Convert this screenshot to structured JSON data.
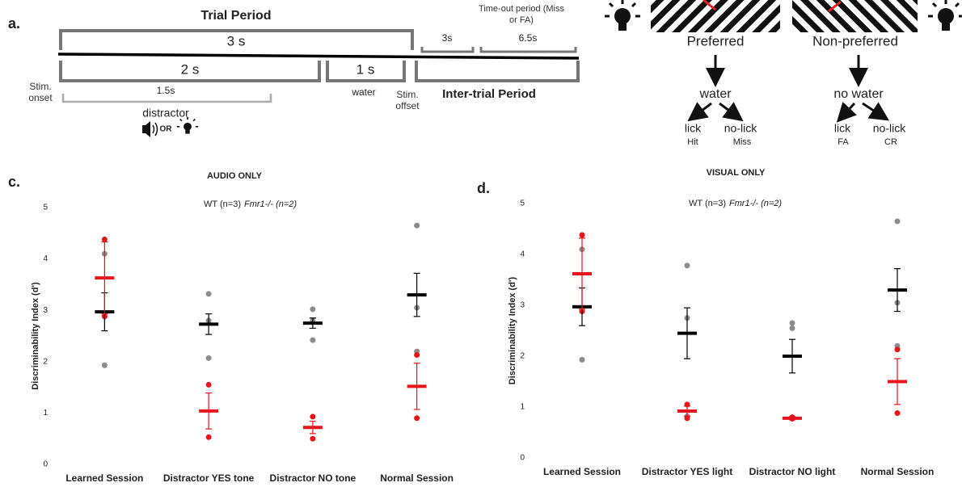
{
  "panel_a": {
    "label": "a.",
    "trial_period": "Trial Period",
    "full_trial": "3 s",
    "stim_period": "2 s",
    "water_period": "1 s",
    "stim_onset": "Stim. onset",
    "distractor_duration": "1.5s",
    "distractor": "distractor",
    "or": "OR",
    "water": "water",
    "stim_offset": "Stim. offset",
    "inter_trial": "Inter-trial Period",
    "iti": "3s",
    "timeout_label": "Time-out period (Miss or FA)",
    "timeout": "6.5s"
  },
  "task": {
    "preferred": "Preferred",
    "non_preferred": "Non-preferred",
    "water": "water",
    "no_water": "no water",
    "lick_left": "lick",
    "nolick_left": "no-lick",
    "hit": "Hit",
    "miss": "Miss",
    "lick_right": "lick",
    "nolick_right": "no-lick",
    "fa": "FA",
    "cr": "CR"
  },
  "chart_data": [
    {
      "type": "strip",
      "panel_label": "c.",
      "title": "AUDIO ONLY",
      "y_label": "Discriminability Index (d')",
      "categories": [
        "Learned Session",
        "Distractor YES tone",
        "Distractor NO tone",
        "Normal Session"
      ],
      "ylim": [
        0,
        5
      ],
      "yticks": [
        0,
        1,
        2,
        3,
        4,
        5
      ],
      "series": [
        {
          "name": "WT (n=3)",
          "color": "#8c8c8c",
          "mean_color": "#000000",
          "points": [
            [
              1.93,
              2.88,
              4.1
            ],
            [
              3.32,
              2.07,
              2.8
            ],
            [
              3.02,
              2.42,
              2.8
            ],
            [
              4.65,
              3.05,
              2.2
            ]
          ],
          "values": [
            2.97,
            2.73,
            2.75,
            3.3
          ],
          "errors": [
            0.37,
            0.2,
            0.1,
            0.42
          ]
        },
        {
          "name": "Fmr1-/- (n=2)",
          "color": "#e8141b",
          "mean_color": "#e8141b",
          "points": [
            [
              4.38,
              2.88
            ],
            [
              1.55,
              0.53
            ],
            [
              0.93,
              0.5
            ],
            [
              2.13,
              0.9
            ]
          ],
          "values": [
            3.63,
            1.04,
            0.72,
            1.52
          ],
          "errors": [
            0.7,
            0.35,
            0.12,
            0.45
          ]
        }
      ]
    },
    {
      "type": "strip",
      "panel_label": "d.",
      "title": "VISUAL ONLY",
      "y_label": "Discriminability Index (d')",
      "categories": [
        "Learned Session",
        "Distractor YES light",
        "Distractor NO light",
        "Normal Session"
      ],
      "ylim": [
        0,
        5
      ],
      "yticks": [
        0,
        1,
        2,
        3,
        4,
        5
      ],
      "series": [
        {
          "name": "WT (n=3)",
          "color": "#8c8c8c",
          "mean_color": "#000000",
          "points": [
            [
              1.93,
              2.88,
              4.1
            ],
            [
              3.78,
              2.75,
              0.82
            ],
            [
              2.65,
              2.55,
              0.8
            ],
            [
              4.65,
              3.05,
              2.2
            ]
          ],
          "values": [
            2.97,
            2.45,
            2.0,
            3.3
          ],
          "errors": [
            0.37,
            0.5,
            0.33,
            0.42
          ]
        },
        {
          "name": "Fmr1-/- (n=2)",
          "color": "#e8141b",
          "mean_color": "#e8141b",
          "points": [
            [
              4.38,
              2.88
            ],
            [
              1.05,
              0.78
            ],
            [
              0.8,
              0.77
            ],
            [
              2.13,
              0.88
            ]
          ],
          "values": [
            3.62,
            0.92,
            0.78,
            1.5
          ],
          "errors": [
            0.7,
            0.1,
            0.03,
            0.45
          ]
        }
      ]
    }
  ]
}
